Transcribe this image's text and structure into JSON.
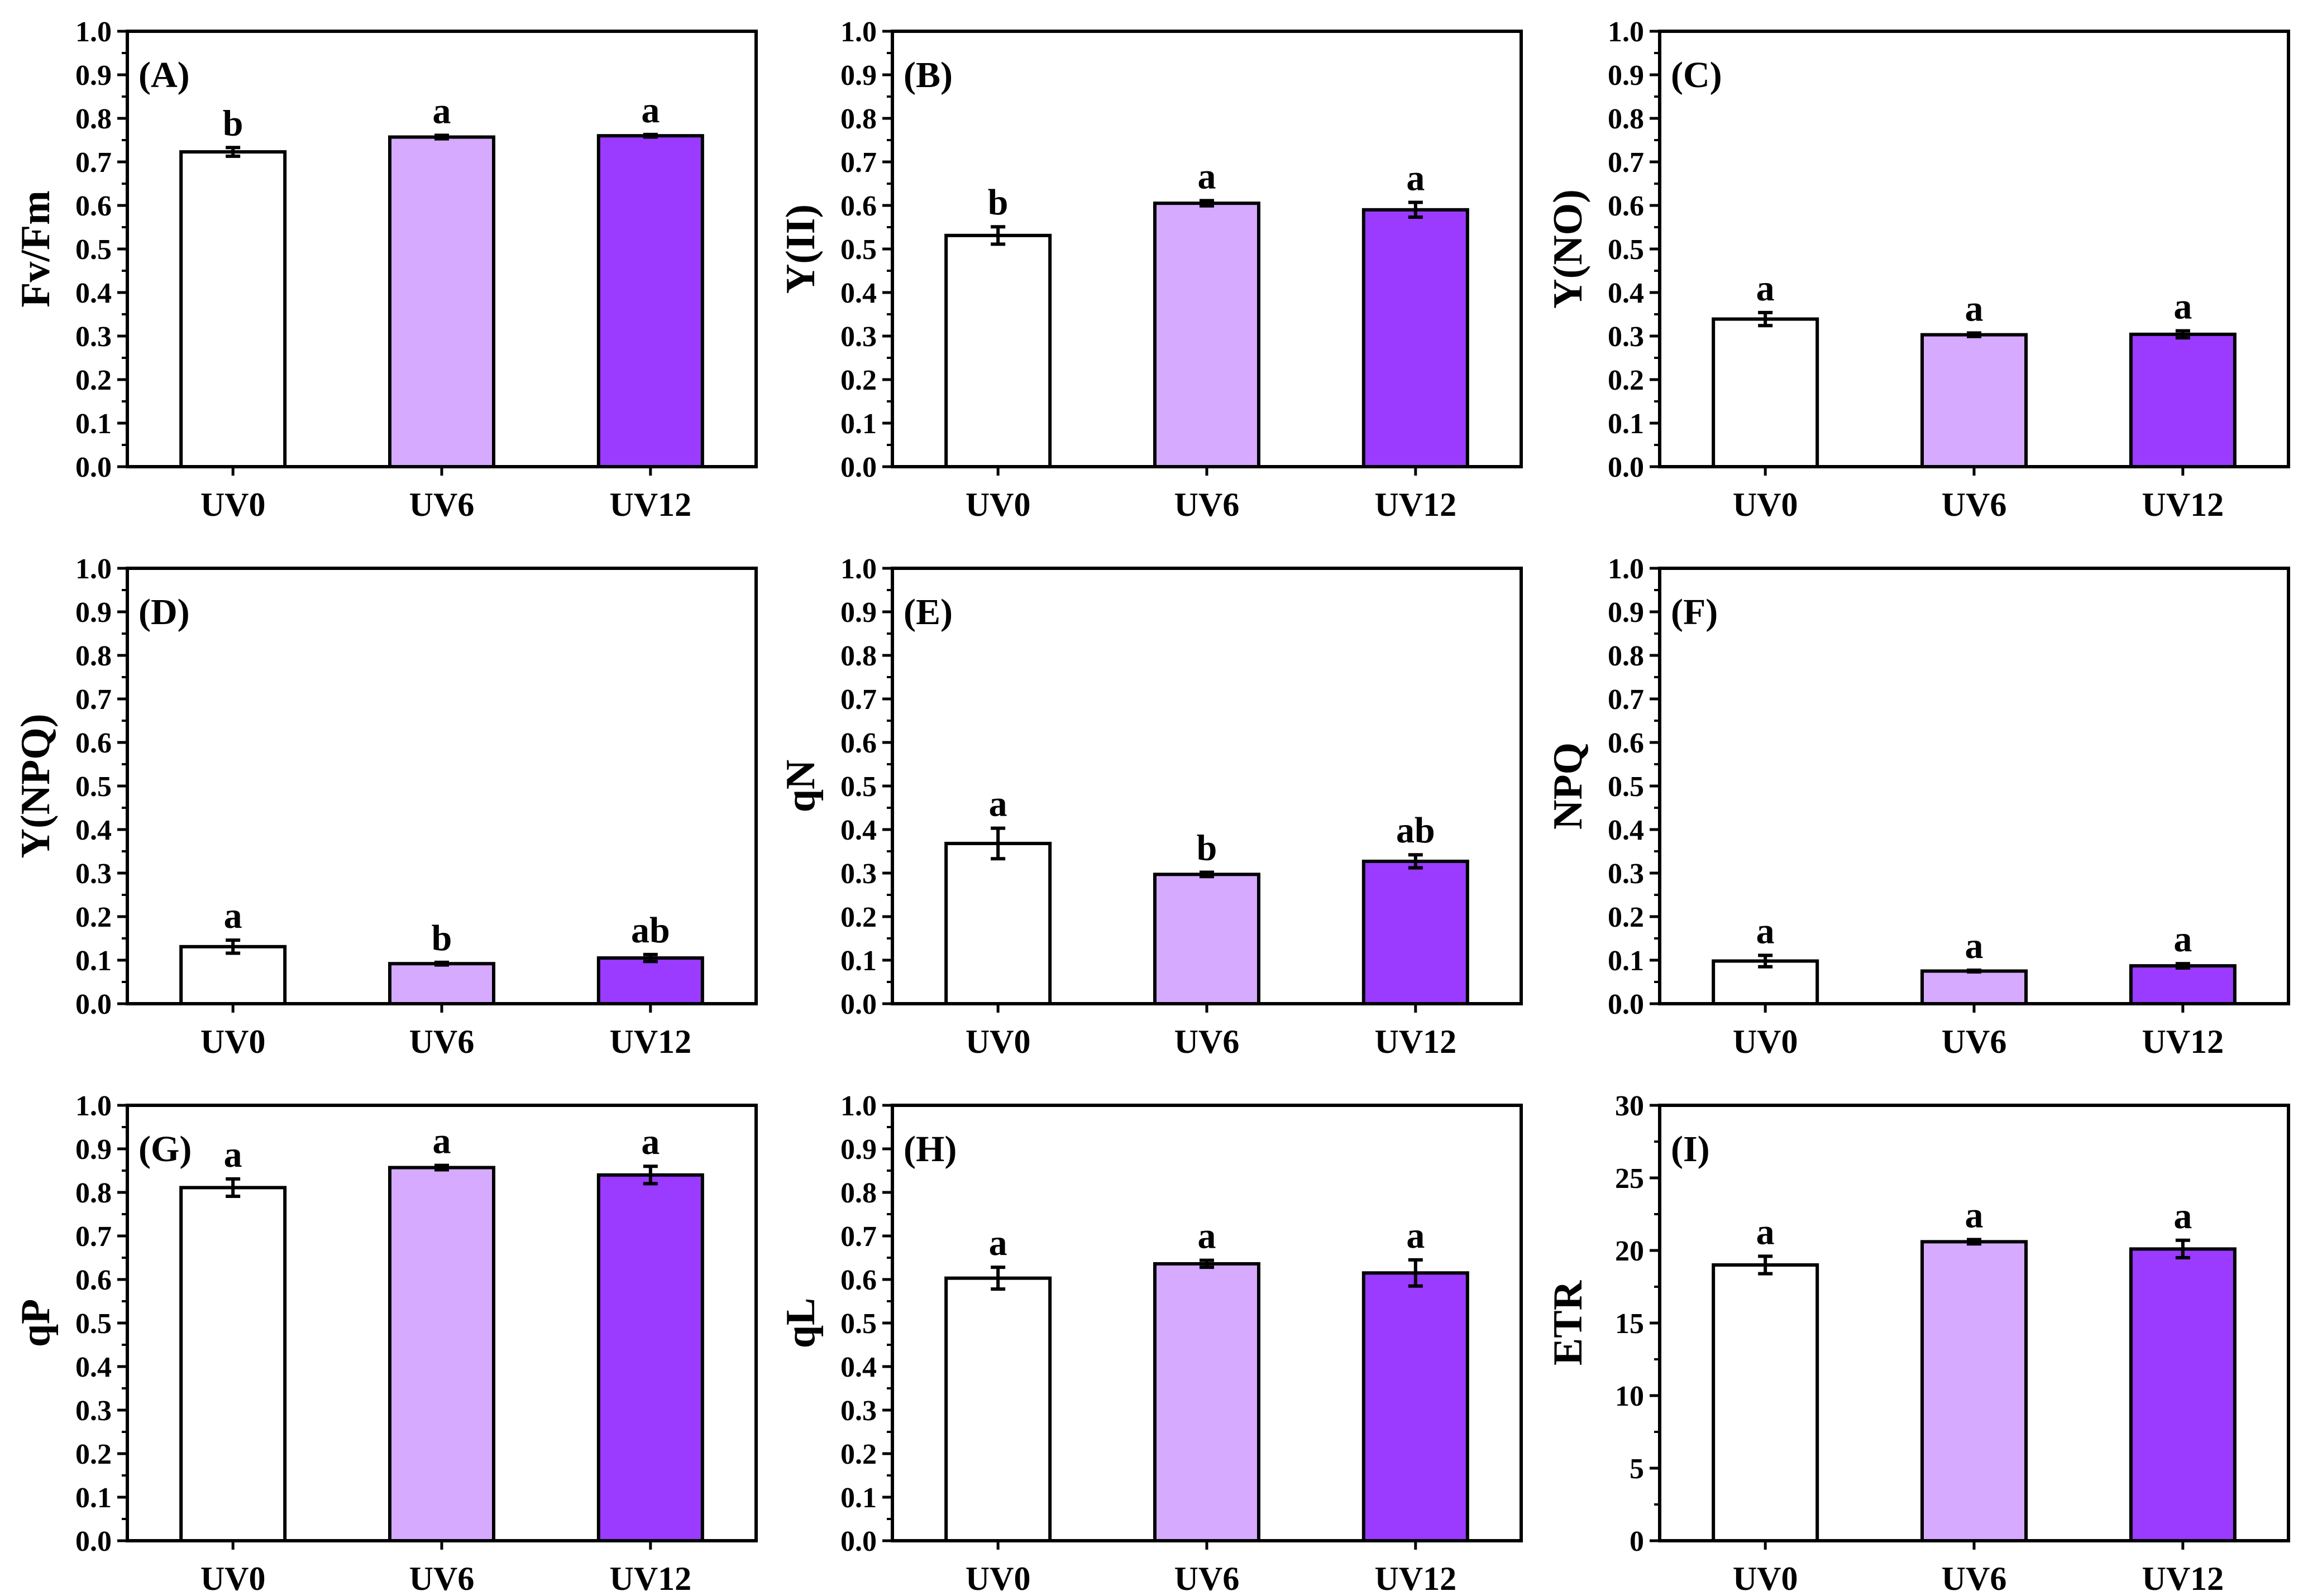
{
  "colors": {
    "UV0": "#ffffff",
    "UV6": "#d5aaff",
    "UV12": "#9a3bff",
    "frame": "#000000"
  },
  "chart_data": [
    {
      "type": "bar",
      "panel_label": "(A)",
      "ylabel": "Fv/Fm",
      "categories": [
        "UV0",
        "UV6",
        "UV12"
      ],
      "values": [
        0.723,
        0.757,
        0.76
      ],
      "errors": [
        0.01,
        0.004,
        0.003
      ],
      "significance": [
        "b",
        "a",
        "a"
      ],
      "ylim": [
        0,
        1.0
      ],
      "yticks": [
        "0.0",
        "0.1",
        "0.2",
        "0.3",
        "0.4",
        "0.5",
        "0.6",
        "0.7",
        "0.8",
        "0.9",
        "1.0"
      ]
    },
    {
      "type": "bar",
      "panel_label": "(B)",
      "ylabel": "Y(II)",
      "categories": [
        "UV0",
        "UV6",
        "UV12"
      ],
      "values": [
        0.531,
        0.605,
        0.59
      ],
      "errors": [
        0.02,
        0.006,
        0.017
      ],
      "significance": [
        "b",
        "a",
        "a"
      ],
      "ylim": [
        0,
        1.0
      ],
      "yticks": [
        "0.0",
        "0.1",
        "0.2",
        "0.3",
        "0.4",
        "0.5",
        "0.6",
        "0.7",
        "0.8",
        "0.9",
        "1.0"
      ]
    },
    {
      "type": "bar",
      "panel_label": "(C)",
      "ylabel": "Y(NO)",
      "categories": [
        "UV0",
        "UV6",
        "UV12"
      ],
      "values": [
        0.339,
        0.303,
        0.304
      ],
      "errors": [
        0.015,
        0.004,
        0.008
      ],
      "significance": [
        "a",
        "a",
        "a"
      ],
      "ylim": [
        0,
        1.0
      ],
      "yticks": [
        "0.0",
        "0.1",
        "0.2",
        "0.3",
        "0.4",
        "0.5",
        "0.6",
        "0.7",
        "0.8",
        "0.9",
        "1.0"
      ]
    },
    {
      "type": "bar",
      "panel_label": "(D)",
      "ylabel": "Y(NPQ)",
      "categories": [
        "UV0",
        "UV6",
        "UV12"
      ],
      "values": [
        0.131,
        0.092,
        0.105
      ],
      "errors": [
        0.015,
        0.003,
        0.008
      ],
      "significance": [
        "a",
        "b",
        "ab"
      ],
      "ylim": [
        0,
        1.0
      ],
      "yticks": [
        "0.0",
        "0.1",
        "0.2",
        "0.3",
        "0.4",
        "0.5",
        "0.6",
        "0.7",
        "0.8",
        "0.9",
        "1.0"
      ]
    },
    {
      "type": "bar",
      "panel_label": "(E)",
      "ylabel": "qN",
      "categories": [
        "UV0",
        "UV6",
        "UV12"
      ],
      "values": [
        0.368,
        0.297,
        0.327
      ],
      "errors": [
        0.035,
        0.005,
        0.015
      ],
      "significance": [
        "a",
        "b",
        "ab"
      ],
      "ylim": [
        0,
        1.0
      ],
      "yticks": [
        "0.0",
        "0.1",
        "0.2",
        "0.3",
        "0.4",
        "0.5",
        "0.6",
        "0.7",
        "0.8",
        "0.9",
        "1.0"
      ]
    },
    {
      "type": "bar",
      "panel_label": "(F)",
      "ylabel": "NPQ",
      "categories": [
        "UV0",
        "UV6",
        "UV12"
      ],
      "values": [
        0.098,
        0.075,
        0.087
      ],
      "errors": [
        0.013,
        0.002,
        0.005
      ],
      "significance": [
        "a",
        "a",
        "a"
      ],
      "ylim": [
        0,
        1.0
      ],
      "yticks": [
        "0.0",
        "0.1",
        "0.2",
        "0.3",
        "0.4",
        "0.5",
        "0.6",
        "0.7",
        "0.8",
        "0.9",
        "1.0"
      ]
    },
    {
      "type": "bar",
      "panel_label": "(G)",
      "ylabel": "qP",
      "categories": [
        "UV0",
        "UV6",
        "UV12"
      ],
      "values": [
        0.811,
        0.857,
        0.84
      ],
      "errors": [
        0.02,
        0.005,
        0.02
      ],
      "significance": [
        "a",
        "a",
        "a"
      ],
      "ylim": [
        0,
        1.0
      ],
      "yticks": [
        "0.0",
        "0.1",
        "0.2",
        "0.3",
        "0.4",
        "0.5",
        "0.6",
        "0.7",
        "0.8",
        "0.9",
        "1.0"
      ]
    },
    {
      "type": "bar",
      "panel_label": "(H)",
      "ylabel": "qL",
      "categories": [
        "UV0",
        "UV6",
        "UV12"
      ],
      "values": [
        0.603,
        0.636,
        0.615
      ],
      "errors": [
        0.025,
        0.008,
        0.03
      ],
      "significance": [
        "a",
        "a",
        "a"
      ],
      "ylim": [
        0,
        1.0
      ],
      "yticks": [
        "0.0",
        "0.1",
        "0.2",
        "0.3",
        "0.4",
        "0.5",
        "0.6",
        "0.7",
        "0.8",
        "0.9",
        "1.0"
      ]
    },
    {
      "type": "bar",
      "panel_label": "(I)",
      "ylabel": "ETR",
      "categories": [
        "UV0",
        "UV6",
        "UV12"
      ],
      "values": [
        19.0,
        20.6,
        20.1
      ],
      "errors": [
        0.6,
        0.15,
        0.6
      ],
      "significance": [
        "a",
        "a",
        "a"
      ],
      "ylim": [
        0,
        30
      ],
      "yticks": [
        "0",
        "5",
        "10",
        "15",
        "20",
        "25",
        "30"
      ]
    }
  ]
}
